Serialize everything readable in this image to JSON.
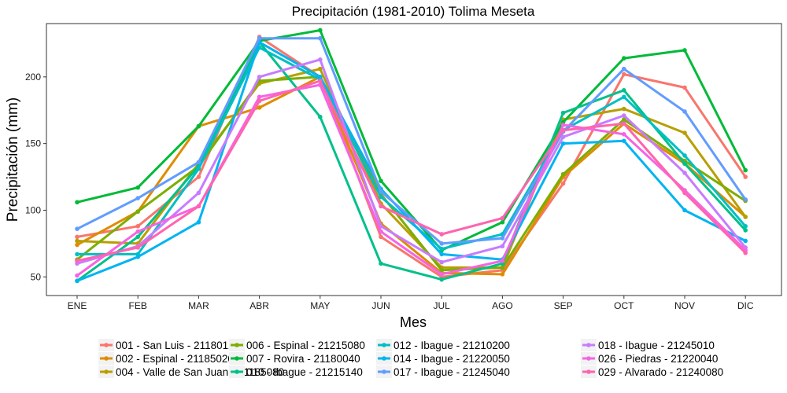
{
  "chart_data": {
    "type": "line",
    "title": "Precipitación (1981-2010)  Tolima Meseta",
    "xlabel": "Mes",
    "ylabel": "Precipitación (mm)",
    "categories": [
      "ENE",
      "FEB",
      "MAR",
      "ABR",
      "MAY",
      "JUN",
      "JUL",
      "AGO",
      "SEP",
      "OCT",
      "NOV",
      "DIC"
    ],
    "ylim": [
      36,
      240
    ],
    "yticks": [
      50,
      100,
      150,
      200
    ],
    "grid": false,
    "legend_position": "bottom",
    "series": [
      {
        "name": "001 - San Luis - 21180120",
        "color": "#F8766D",
        "values": [
          80,
          88,
          125,
          230,
          200,
          80,
          50,
          55,
          120,
          202,
          192,
          125
        ]
      },
      {
        "name": "002 - Espinal - 21185020",
        "color": "#DE8C00",
        "values": [
          74,
          99,
          163,
          177,
          200,
          90,
          53,
          52,
          125,
          165,
          135,
          95
        ]
      },
      {
        "name": "004 - Valle de San Juan - 21185080",
        "color": "#B79F00",
        "values": [
          77,
          75,
          135,
          195,
          206,
          105,
          57,
          57,
          168,
          176,
          158,
          95
        ]
      },
      {
        "name": "006 - Espinal - 21215080",
        "color": "#7CAE00",
        "values": [
          63,
          99,
          133,
          197,
          200,
          112,
          55,
          57,
          127,
          168,
          137,
          107
        ]
      },
      {
        "name": "007 - Rovira - 21180040",
        "color": "#00BA38",
        "values": [
          106,
          117,
          163,
          227,
          235,
          122,
          70,
          91,
          166,
          214,
          220,
          130
        ]
      },
      {
        "name": "010 - Ibague - 21215140",
        "color": "#00C08B",
        "values": [
          47,
          80,
          133,
          226,
          170,
          60,
          48,
          60,
          173,
          190,
          135,
          85
        ]
      },
      {
        "name": "012 - Ibague - 21210200",
        "color": "#00BFC4",
        "values": [
          67,
          67,
          131,
          222,
          198,
          110,
          71,
          82,
          160,
          185,
          141,
          88
        ]
      },
      {
        "name": "014 - Ibague - 21220050",
        "color": "#00B4F0",
        "values": [
          47,
          65,
          91,
          226,
          200,
          116,
          67,
          63,
          150,
          152,
          100,
          77
        ]
      },
      {
        "name": "017 - Ibague - 21245040",
        "color": "#619CFF",
        "values": [
          86,
          109,
          136,
          229,
          229,
          114,
          75,
          79,
          159,
          206,
          174,
          108
        ]
      },
      {
        "name": "018 - Ibague - 21245010",
        "color": "#C77CFF",
        "values": [
          60,
          73,
          113,
          200,
          213,
          88,
          61,
          73,
          155,
          171,
          128,
          72
        ]
      },
      {
        "name": "026 - Piedras - 21220040",
        "color": "#F564E3",
        "values": [
          51,
          84,
          103,
          185,
          194,
          84,
          52,
          62,
          164,
          157,
          115,
          70
        ]
      },
      {
        "name": "029 - Alvarado - 21240080",
        "color": "#FF64B0",
        "values": [
          62,
          72,
          103,
          182,
          197,
          103,
          82,
          94,
          160,
          165,
          113,
          68
        ]
      }
    ]
  }
}
